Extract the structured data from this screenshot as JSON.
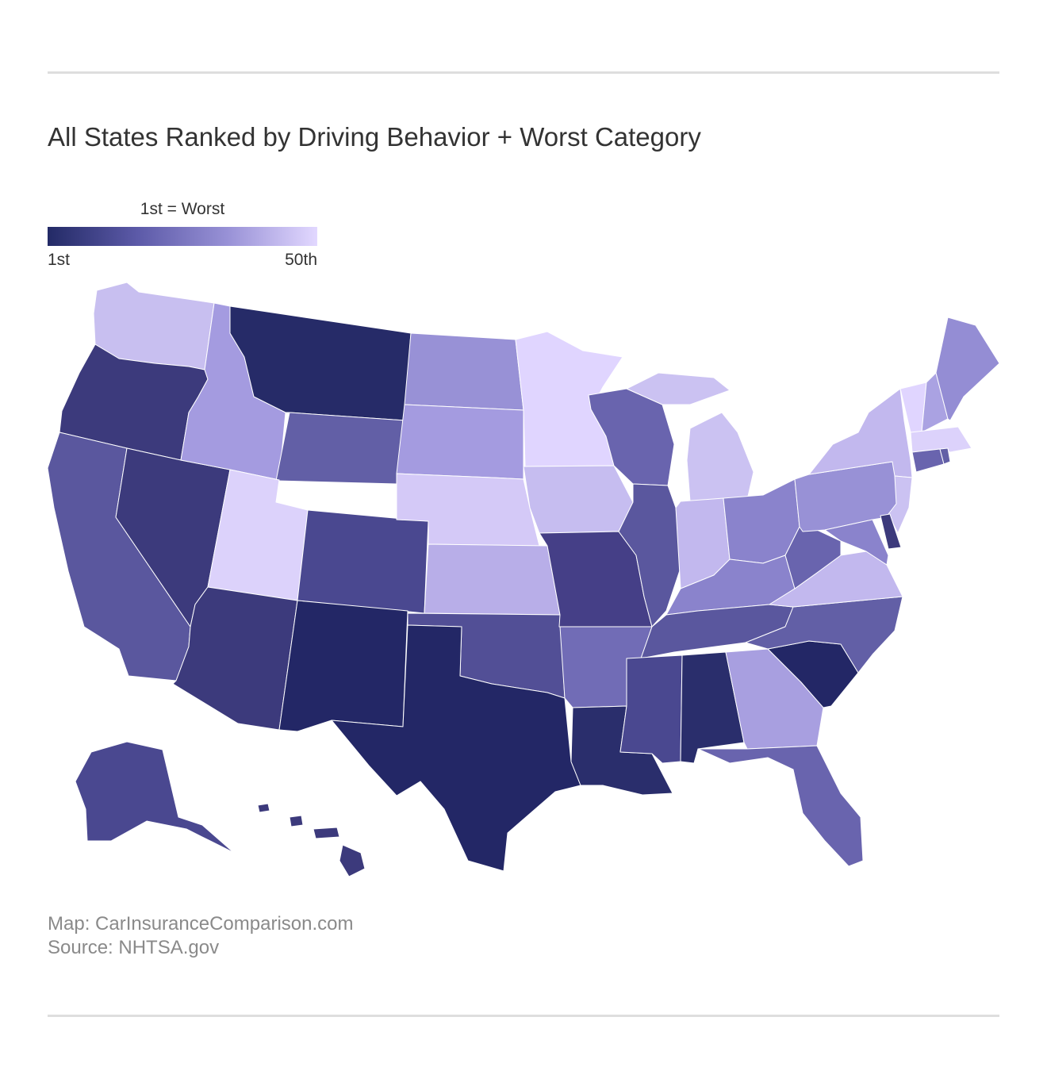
{
  "title": "All States Ranked by Driving Behavior + Worst Category",
  "legend": {
    "title": "1st = Worst",
    "min_label": "1st",
    "max_label": "50th",
    "color_low": "#232a66",
    "color_high": "#e2d8ff"
  },
  "credits": {
    "map": "Map: CarInsuranceComparison.com",
    "source": "Source: NHTSA.gov"
  },
  "map": {
    "states": [
      {
        "id": "WA",
        "color": "#c8bff0"
      },
      {
        "id": "OR",
        "color": "#3c3a7c"
      },
      {
        "id": "CA",
        "color": "#5a579e"
      },
      {
        "id": "NV",
        "color": "#3c3a7c"
      },
      {
        "id": "ID",
        "color": "#a49be0"
      },
      {
        "id": "MT",
        "color": "#262b68"
      },
      {
        "id": "WY",
        "color": "#625fa6"
      },
      {
        "id": "UT",
        "color": "#dcd2fb"
      },
      {
        "id": "AZ",
        "color": "#3c3a7c"
      },
      {
        "id": "CO",
        "color": "#4a4890"
      },
      {
        "id": "NM",
        "color": "#232766"
      },
      {
        "id": "ND",
        "color": "#9891d6"
      },
      {
        "id": "SD",
        "color": "#a49be0"
      },
      {
        "id": "NE",
        "color": "#d4c9f7"
      },
      {
        "id": "KS",
        "color": "#b8aee8"
      },
      {
        "id": "OK",
        "color": "#524f96"
      },
      {
        "id": "TX",
        "color": "#232766"
      },
      {
        "id": "MN",
        "color": "#e0d5ff"
      },
      {
        "id": "IA",
        "color": "#c6bdf0"
      },
      {
        "id": "MO",
        "color": "#453f87"
      },
      {
        "id": "AR",
        "color": "#716cb6"
      },
      {
        "id": "LA",
        "color": "#2a2e6c"
      },
      {
        "id": "WI",
        "color": "#6964ae"
      },
      {
        "id": "IL",
        "color": "#5a579e"
      },
      {
        "id": "MI",
        "color": "#cbc2f2"
      },
      {
        "id": "IN",
        "color": "#c2b8ee"
      },
      {
        "id": "OH",
        "color": "#8a83cc"
      },
      {
        "id": "KY",
        "color": "#8a83cc"
      },
      {
        "id": "TN",
        "color": "#5a579e"
      },
      {
        "id": "MS",
        "color": "#4a4890"
      },
      {
        "id": "AL",
        "color": "#2a2e6c"
      },
      {
        "id": "GA",
        "color": "#a89fe0"
      },
      {
        "id": "FL",
        "color": "#6964ae"
      },
      {
        "id": "SC",
        "color": "#232766"
      },
      {
        "id": "NC",
        "color": "#625fa6"
      },
      {
        "id": "VA",
        "color": "#c2b8ee"
      },
      {
        "id": "WV",
        "color": "#6964ae"
      },
      {
        "id": "PA",
        "color": "#9891d6"
      },
      {
        "id": "NY",
        "color": "#c2b8ee"
      },
      {
        "id": "VT",
        "color": "#e0d5ff"
      },
      {
        "id": "NH",
        "color": "#aaa2e2"
      },
      {
        "id": "ME",
        "color": "#948dd4"
      },
      {
        "id": "MA",
        "color": "#dcd2fb"
      },
      {
        "id": "CT",
        "color": "#6964ae"
      },
      {
        "id": "RI",
        "color": "#625fa6"
      },
      {
        "id": "NJ",
        "color": "#cbc2f2"
      },
      {
        "id": "DE",
        "color": "#3c3a7c"
      },
      {
        "id": "MD",
        "color": "#8a83cc"
      },
      {
        "id": "AK",
        "color": "#4a4890"
      },
      {
        "id": "HI",
        "color": "#3c3a7c"
      }
    ]
  }
}
